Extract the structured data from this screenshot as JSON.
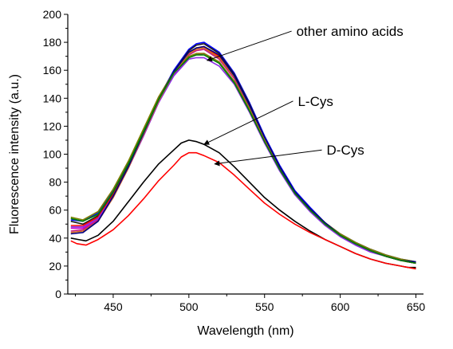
{
  "chart_data": {
    "type": "line",
    "xlabel": "Wavelength (nm)",
    "ylabel": "Fluorescence intensity (a.u.)",
    "xlim": [
      420,
      655
    ],
    "ylim": [
      0,
      200
    ],
    "xticks": [
      450,
      500,
      550,
      600,
      650
    ],
    "yticks": [
      0,
      20,
      40,
      60,
      80,
      100,
      120,
      140,
      160,
      180,
      200
    ],
    "grid": false,
    "legend": "none",
    "annotations": [
      {
        "text": "other amino acids",
        "x": 571,
        "y": 188,
        "arrow_to_x": 512,
        "arrow_to_y": 167
      },
      {
        "text": "L-Cys",
        "x": 572,
        "y": 138,
        "arrow_to_x": 510,
        "arrow_to_y": 107
      },
      {
        "text": "D-Cys",
        "x": 591,
        "y": 103,
        "arrow_to_x": 517,
        "arrow_to_y": 93
      }
    ],
    "series": [
      {
        "color": "#0000ff",
        "points": [
          [
            422,
            53
          ],
          [
            430,
            52
          ],
          [
            440,
            58
          ],
          [
            450,
            74
          ],
          [
            460,
            94
          ],
          [
            470,
            117
          ],
          [
            480,
            140
          ],
          [
            490,
            160
          ],
          [
            500,
            175
          ],
          [
            505,
            179
          ],
          [
            510,
            180
          ],
          [
            520,
            173
          ],
          [
            530,
            158
          ],
          [
            540,
            137
          ],
          [
            550,
            113
          ],
          [
            560,
            92
          ],
          [
            570,
            74
          ],
          [
            580,
            62
          ],
          [
            590,
            51
          ],
          [
            600,
            43
          ],
          [
            610,
            37
          ],
          [
            620,
            32
          ],
          [
            630,
            28
          ],
          [
            640,
            25
          ],
          [
            650,
            23
          ]
        ]
      },
      {
        "color": "#1a1a1a",
        "points": [
          [
            422,
            52
          ],
          [
            430,
            50
          ],
          [
            440,
            56
          ],
          [
            450,
            72
          ],
          [
            460,
            92
          ],
          [
            470,
            115
          ],
          [
            480,
            139
          ],
          [
            490,
            159
          ],
          [
            500,
            174
          ],
          [
            505,
            178
          ],
          [
            510,
            179
          ],
          [
            520,
            172
          ],
          [
            530,
            157
          ],
          [
            540,
            136
          ],
          [
            550,
            112
          ],
          [
            560,
            91
          ],
          [
            570,
            73
          ],
          [
            580,
            61
          ],
          [
            590,
            50
          ],
          [
            600,
            42
          ],
          [
            610,
            36
          ],
          [
            620,
            31
          ],
          [
            630,
            27
          ],
          [
            640,
            24
          ],
          [
            650,
            22
          ]
        ]
      },
      {
        "color": "#ff0000",
        "points": [
          [
            422,
            49
          ],
          [
            430,
            49
          ],
          [
            440,
            55
          ],
          [
            450,
            71
          ],
          [
            460,
            91
          ],
          [
            470,
            114
          ],
          [
            480,
            138
          ],
          [
            490,
            158
          ],
          [
            500,
            172
          ],
          [
            505,
            176
          ],
          [
            510,
            177
          ],
          [
            520,
            170
          ],
          [
            530,
            155
          ],
          [
            540,
            134
          ],
          [
            550,
            111
          ],
          [
            560,
            90
          ],
          [
            570,
            72
          ],
          [
            580,
            60
          ],
          [
            590,
            50
          ],
          [
            600,
            42
          ],
          [
            610,
            36
          ],
          [
            620,
            31
          ],
          [
            630,
            27
          ],
          [
            640,
            24
          ],
          [
            650,
            22
          ]
        ]
      },
      {
        "color": "#cc00cc",
        "points": [
          [
            422,
            47
          ],
          [
            430,
            47
          ],
          [
            440,
            53
          ],
          [
            450,
            69
          ],
          [
            460,
            90
          ],
          [
            470,
            113
          ],
          [
            480,
            137
          ],
          [
            490,
            157
          ],
          [
            500,
            169
          ],
          [
            505,
            171
          ],
          [
            510,
            172
          ],
          [
            520,
            166
          ],
          [
            530,
            152
          ],
          [
            540,
            132
          ],
          [
            550,
            110
          ],
          [
            560,
            89
          ],
          [
            570,
            72
          ],
          [
            580,
            60
          ],
          [
            590,
            50
          ],
          [
            600,
            42
          ],
          [
            610,
            36
          ],
          [
            620,
            31
          ],
          [
            630,
            27
          ],
          [
            640,
            24
          ],
          [
            650,
            22
          ]
        ]
      },
      {
        "color": "#c71585",
        "points": [
          [
            422,
            45
          ],
          [
            430,
            46
          ],
          [
            440,
            53
          ],
          [
            450,
            70
          ],
          [
            460,
            91
          ],
          [
            470,
            114
          ],
          [
            480,
            138
          ],
          [
            490,
            158
          ],
          [
            500,
            171
          ],
          [
            505,
            174
          ],
          [
            510,
            175
          ],
          [
            520,
            168
          ],
          [
            530,
            154
          ],
          [
            540,
            133
          ],
          [
            550,
            110
          ],
          [
            560,
            89
          ],
          [
            570,
            72
          ],
          [
            580,
            60
          ],
          [
            590,
            50
          ],
          [
            600,
            42
          ],
          [
            610,
            36
          ],
          [
            620,
            31
          ],
          [
            630,
            27
          ],
          [
            640,
            24
          ],
          [
            650,
            22
          ]
        ]
      },
      {
        "color": "#8a2be2",
        "points": [
          [
            422,
            48
          ],
          [
            430,
            48
          ],
          [
            440,
            54
          ],
          [
            450,
            70
          ],
          [
            460,
            90
          ],
          [
            470,
            113
          ],
          [
            480,
            137
          ],
          [
            490,
            156
          ],
          [
            500,
            168
          ],
          [
            505,
            169
          ],
          [
            510,
            169
          ],
          [
            520,
            163
          ],
          [
            530,
            150
          ],
          [
            540,
            130
          ],
          [
            550,
            108
          ],
          [
            560,
            88
          ],
          [
            570,
            71
          ],
          [
            580,
            59
          ],
          [
            590,
            49
          ],
          [
            600,
            41
          ],
          [
            610,
            35
          ],
          [
            620,
            30
          ],
          [
            630,
            27
          ],
          [
            640,
            24
          ],
          [
            650,
            22
          ]
        ]
      },
      {
        "color": "#808000",
        "points": [
          [
            422,
            55
          ],
          [
            430,
            53
          ],
          [
            440,
            59
          ],
          [
            450,
            75
          ],
          [
            460,
            95
          ],
          [
            470,
            118
          ],
          [
            480,
            141
          ],
          [
            490,
            159
          ],
          [
            500,
            170
          ],
          [
            505,
            172
          ],
          [
            510,
            172
          ],
          [
            520,
            166
          ],
          [
            530,
            152
          ],
          [
            540,
            132
          ],
          [
            550,
            110
          ],
          [
            560,
            90
          ],
          [
            570,
            73
          ],
          [
            580,
            61
          ],
          [
            590,
            51
          ],
          [
            600,
            43
          ],
          [
            610,
            37
          ],
          [
            620,
            32
          ],
          [
            630,
            28
          ],
          [
            640,
            25
          ],
          [
            650,
            23
          ]
        ]
      },
      {
        "color": "#d2691e",
        "points": [
          [
            422,
            44
          ],
          [
            430,
            45
          ],
          [
            440,
            52
          ],
          [
            450,
            69
          ],
          [
            460,
            90
          ],
          [
            470,
            114
          ],
          [
            480,
            138
          ],
          [
            490,
            158
          ],
          [
            500,
            172
          ],
          [
            505,
            175
          ],
          [
            510,
            176
          ],
          [
            520,
            169
          ],
          [
            530,
            155
          ],
          [
            540,
            134
          ],
          [
            550,
            111
          ],
          [
            560,
            90
          ],
          [
            570,
            72
          ],
          [
            580,
            60
          ],
          [
            590,
            50
          ],
          [
            600,
            42
          ],
          [
            610,
            36
          ],
          [
            620,
            31
          ],
          [
            630,
            27
          ],
          [
            640,
            24
          ],
          [
            650,
            22
          ]
        ]
      },
      {
        "color": "#000080",
        "points": [
          [
            422,
            43
          ],
          [
            430,
            44
          ],
          [
            440,
            52
          ],
          [
            450,
            70
          ],
          [
            460,
            91
          ],
          [
            470,
            115
          ],
          [
            480,
            139
          ],
          [
            490,
            159
          ],
          [
            500,
            173
          ],
          [
            505,
            176
          ],
          [
            510,
            177
          ],
          [
            520,
            171
          ],
          [
            530,
            156
          ],
          [
            540,
            135
          ],
          [
            550,
            112
          ],
          [
            560,
            91
          ],
          [
            570,
            73
          ],
          [
            580,
            61
          ],
          [
            590,
            51
          ],
          [
            600,
            42
          ],
          [
            610,
            36
          ],
          [
            620,
            31
          ],
          [
            630,
            27
          ],
          [
            640,
            24
          ],
          [
            650,
            23
          ]
        ]
      },
      {
        "color": "#008000",
        "points": [
          [
            422,
            54
          ],
          [
            430,
            52
          ],
          [
            440,
            57
          ],
          [
            450,
            73
          ],
          [
            460,
            93
          ],
          [
            470,
            116
          ],
          [
            480,
            139
          ],
          [
            490,
            158
          ],
          [
            500,
            169
          ],
          [
            505,
            171
          ],
          [
            510,
            171
          ],
          [
            520,
            165
          ],
          [
            530,
            151
          ],
          [
            540,
            131
          ],
          [
            550,
            109
          ],
          [
            560,
            89
          ],
          [
            570,
            72
          ],
          [
            580,
            60
          ],
          [
            590,
            50
          ],
          [
            600,
            42
          ],
          [
            610,
            36
          ],
          [
            620,
            31
          ],
          [
            630,
            27
          ],
          [
            640,
            24
          ],
          [
            650,
            22
          ]
        ]
      },
      {
        "color": "#000000",
        "points": [
          [
            422,
            40
          ],
          [
            427,
            39
          ],
          [
            432,
            38
          ],
          [
            440,
            42
          ],
          [
            450,
            52
          ],
          [
            460,
            66
          ],
          [
            470,
            80
          ],
          [
            480,
            93
          ],
          [
            490,
            103
          ],
          [
            495,
            108
          ],
          [
            500,
            110
          ],
          [
            505,
            109
          ],
          [
            510,
            107
          ],
          [
            520,
            101
          ],
          [
            530,
            91
          ],
          [
            540,
            80
          ],
          [
            550,
            69
          ],
          [
            560,
            60
          ],
          [
            570,
            52
          ],
          [
            580,
            45
          ],
          [
            590,
            39
          ],
          [
            600,
            34
          ],
          [
            610,
            29
          ],
          [
            620,
            25
          ],
          [
            630,
            22
          ],
          [
            640,
            20
          ],
          [
            645,
            19
          ],
          [
            650,
            19
          ]
        ]
      },
      {
        "color": "#ff0000",
        "points": [
          [
            422,
            38
          ],
          [
            426,
            36
          ],
          [
            432,
            35
          ],
          [
            440,
            39
          ],
          [
            450,
            46
          ],
          [
            460,
            56
          ],
          [
            470,
            68
          ],
          [
            480,
            81
          ],
          [
            490,
            92
          ],
          [
            495,
            98
          ],
          [
            500,
            101
          ],
          [
            505,
            101
          ],
          [
            510,
            99
          ],
          [
            520,
            94
          ],
          [
            530,
            85
          ],
          [
            540,
            75
          ],
          [
            550,
            65
          ],
          [
            560,
            57
          ],
          [
            570,
            50
          ],
          [
            580,
            44
          ],
          [
            590,
            39
          ],
          [
            600,
            34
          ],
          [
            610,
            29
          ],
          [
            620,
            25
          ],
          [
            630,
            22
          ],
          [
            640,
            20
          ],
          [
            645,
            19
          ],
          [
            650,
            18
          ]
        ]
      }
    ]
  }
}
